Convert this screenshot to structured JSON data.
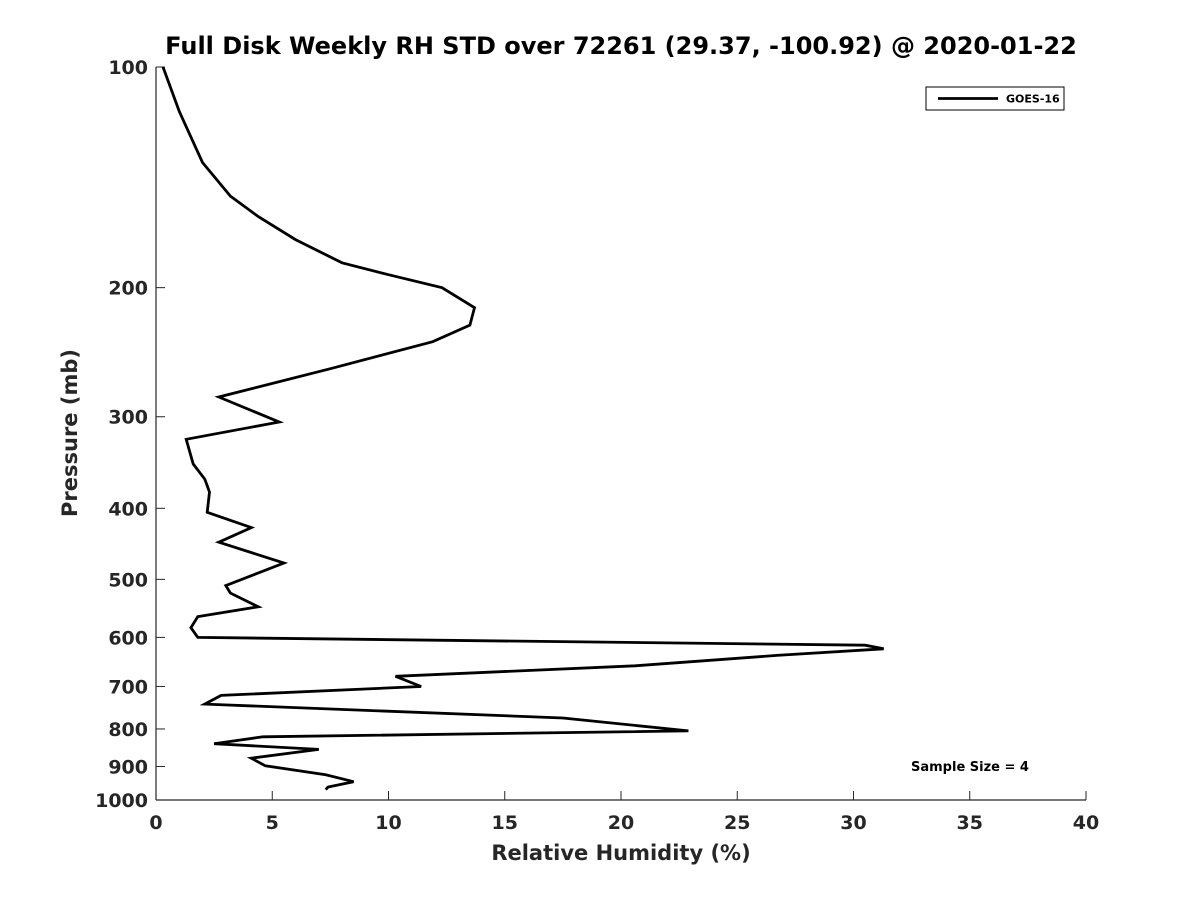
{
  "chart_data": {
    "type": "line",
    "title": "Full Disk Weekly RH STD over 72261 (29.37, -100.92) @ 2020-01-22",
    "xlabel": "Relative Humidity (%)",
    "ylabel": "Pressure (mb)",
    "xlim": [
      0,
      40
    ],
    "ylim": [
      100,
      1000
    ],
    "yscale": "log",
    "x_ticks": [
      0,
      5,
      10,
      15,
      20,
      25,
      30,
      35,
      40
    ],
    "y_ticks": [
      100,
      200,
      300,
      400,
      500,
      600,
      700,
      800,
      900,
      1000
    ],
    "legend_position": "top-right",
    "annotation": "Sample Size = 4",
    "series": [
      {
        "name": "GOES-16",
        "color": "#000000",
        "x": [
          0.3,
          1.0,
          2.0,
          3.2,
          4.4,
          6.0,
          8.0,
          10.0,
          12.3,
          13.7,
          13.5,
          11.9,
          7.5,
          2.7,
          5.3,
          1.3,
          1.6,
          2.1,
          2.3,
          2.2,
          4.1,
          2.7,
          5.5,
          3.0,
          3.2,
          4.4,
          1.8,
          1.5,
          1.8,
          30.5,
          31.3,
          26.7,
          20.6,
          10.3,
          11.4,
          2.8,
          2.1,
          17.5,
          22.9,
          4.6,
          2.5,
          7.0,
          4.1,
          4.7,
          7.3,
          8.5,
          7.4,
          7.3
        ],
        "y": [
          100,
          115,
          135,
          150,
          160,
          172,
          185,
          192,
          200,
          213,
          225,
          237,
          258,
          282,
          305,
          322,
          348,
          365,
          380,
          405,
          425,
          445,
          475,
          510,
          522,
          545,
          562,
          582,
          600,
          615,
          622,
          635,
          656,
          678,
          700,
          720,
          740,
          773,
          805,
          820,
          838,
          853,
          877,
          898,
          924,
          944,
          960,
          968
        ]
      }
    ]
  }
}
